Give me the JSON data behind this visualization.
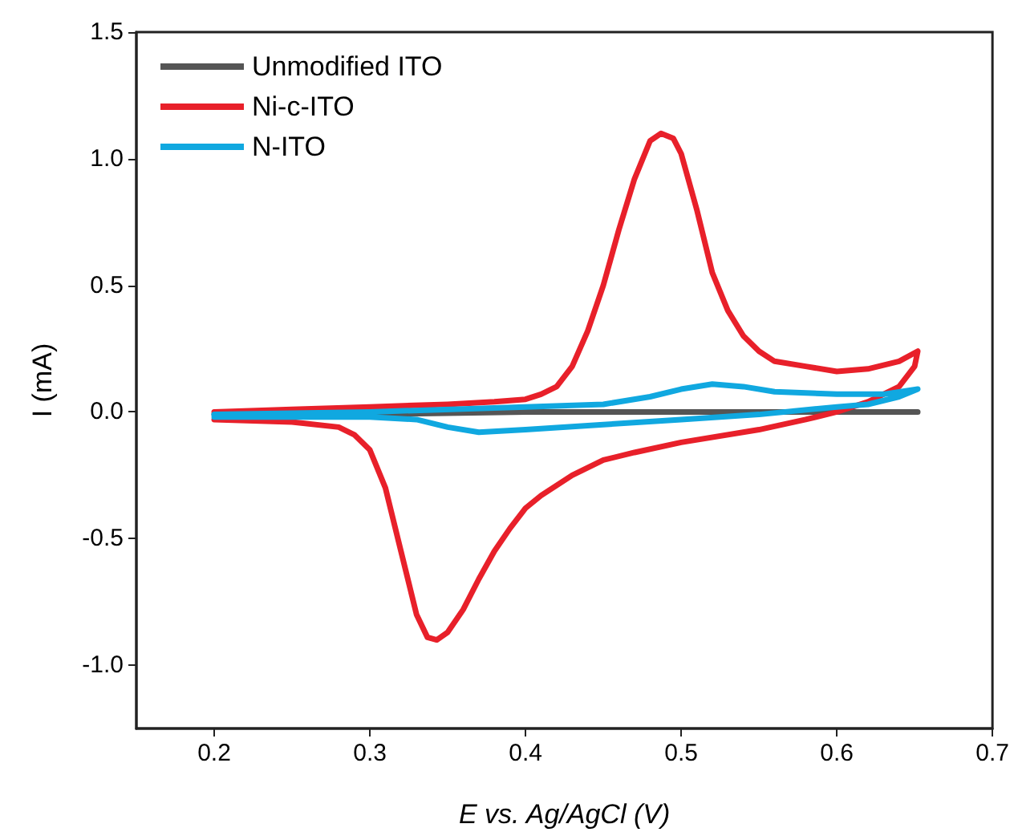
{
  "chart_data": {
    "type": "line",
    "xlabel": "E vs. Ag/AgCl (V)",
    "ylabel": "I (mA)",
    "xlim": [
      0.15,
      0.7
    ],
    "xticks": [
      0.2,
      0.3,
      0.4,
      0.5,
      0.6,
      0.7
    ],
    "ylim": [
      -1.25,
      1.5
    ],
    "yticks": [
      {
        "value": -1,
        "label": "-1.0"
      },
      {
        "value": -0.5,
        "label": "-0.5"
      },
      {
        "value": 0,
        "label": "0.0"
      },
      {
        "value": 0.5,
        "label": "0.5"
      },
      {
        "value": 1,
        "label": "1.0"
      },
      {
        "value": 1.5,
        "label": "1.5"
      }
    ],
    "grid": false,
    "legend": "top left",
    "marker": "none",
    "line_style": "solid",
    "series": [
      {
        "name": "Unmodified ITO",
        "color": "#555555",
        "x": [
          0.2,
          0.3,
          0.4,
          0.5,
          0.6,
          0.652
        ],
        "values": [
          -0.01,
          -0.01,
          0,
          0,
          0,
          0
        ]
      },
      {
        "name": "Ni-c-ITO",
        "color": "#e8202a",
        "x": [
          0.2,
          0.25,
          0.3,
          0.35,
          0.38,
          0.4,
          0.41,
          0.42,
          0.43,
          0.44,
          0.45,
          0.46,
          0.47,
          0.48,
          0.487,
          0.495,
          0.5,
          0.51,
          0.52,
          0.53,
          0.54,
          0.55,
          0.56,
          0.58,
          0.6,
          0.62,
          0.64,
          0.652,
          0.65,
          0.64,
          0.62,
          0.6,
          0.58,
          0.55,
          0.5,
          0.47,
          0.45,
          0.43,
          0.41,
          0.4,
          0.39,
          0.38,
          0.37,
          0.36,
          0.35,
          0.343,
          0.337,
          0.33,
          0.32,
          0.31,
          0.3,
          0.29,
          0.28,
          0.25,
          0.2
        ],
        "values": [
          0,
          0.01,
          0.02,
          0.03,
          0.04,
          0.05,
          0.07,
          0.1,
          0.18,
          0.32,
          0.5,
          0.72,
          0.92,
          1.07,
          1.1,
          1.08,
          1.02,
          0.8,
          0.55,
          0.4,
          0.3,
          0.24,
          0.2,
          0.18,
          0.16,
          0.17,
          0.2,
          0.24,
          0.18,
          0.1,
          0.04,
          0,
          -0.03,
          -0.07,
          -0.12,
          -0.16,
          -0.19,
          -0.25,
          -0.33,
          -0.38,
          -0.46,
          -0.55,
          -0.66,
          -0.78,
          -0.87,
          -0.9,
          -0.89,
          -0.8,
          -0.55,
          -0.3,
          -0.15,
          -0.09,
          -0.06,
          -0.04,
          -0.03
        ]
      },
      {
        "name": "N-ITO",
        "color": "#10a8e0",
        "x": [
          0.2,
          0.3,
          0.4,
          0.45,
          0.48,
          0.5,
          0.52,
          0.54,
          0.56,
          0.6,
          0.63,
          0.652,
          0.64,
          0.62,
          0.6,
          0.55,
          0.5,
          0.45,
          0.4,
          0.37,
          0.35,
          0.33,
          0.3,
          0.2
        ],
        "values": [
          -0.01,
          0,
          0.02,
          0.03,
          0.06,
          0.09,
          0.11,
          0.1,
          0.08,
          0.07,
          0.07,
          0.09,
          0.06,
          0.03,
          0.02,
          -0.01,
          -0.03,
          -0.05,
          -0.07,
          -0.08,
          -0.06,
          -0.03,
          -0.02,
          -0.02
        ]
      }
    ]
  }
}
